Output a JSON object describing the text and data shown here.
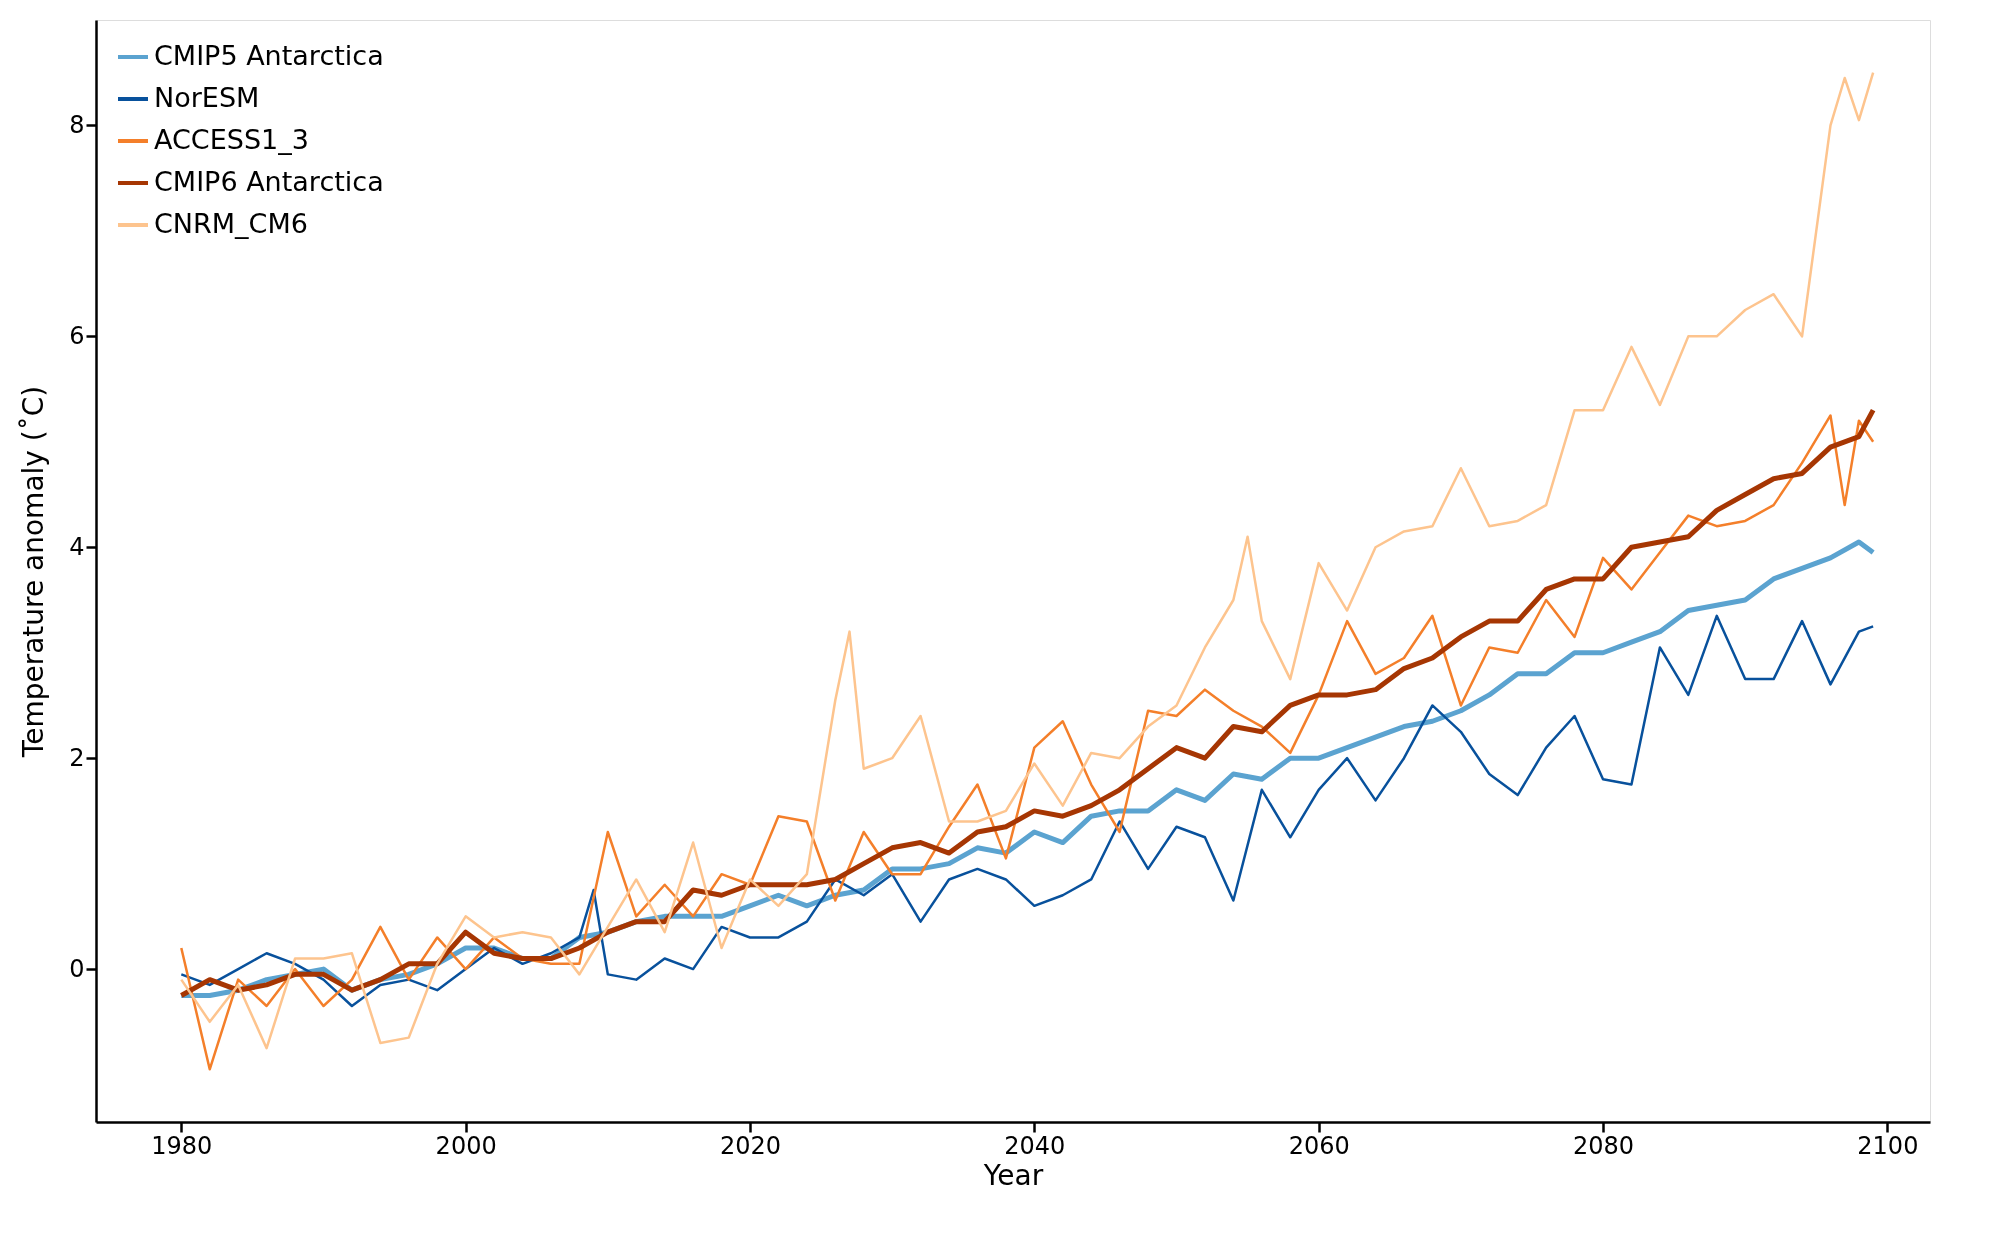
{
  "chart_data": {
    "type": "line",
    "xlabel": "Year",
    "ylabel": "Temperature anomaly (˚C)",
    "xlim": [
      1974,
      2103
    ],
    "ylim": [
      -1.45,
      9.0
    ],
    "xticks": [
      1980,
      2000,
      2020,
      2040,
      2060,
      2080,
      2100
    ],
    "yticks": [
      0,
      2,
      4,
      6,
      8
    ],
    "grid": false,
    "legend": "top left",
    "marker": "none",
    "line_style": "solid",
    "series": [
      {
        "name": "CMIP5 Antarctica",
        "color": "#5ba3d0",
        "x": [
          1980,
          1982,
          1984,
          1986,
          1988,
          1990,
          1992,
          1994,
          1996,
          1998,
          2000,
          2002,
          2004,
          2006,
          2008,
          2010,
          2012,
          2014,
          2016,
          2018,
          2020,
          2022,
          2024,
          2026,
          2028,
          2030,
          2032,
          2034,
          2036,
          2038,
          2040,
          2042,
          2044,
          2046,
          2048,
          2050,
          2052,
          2054,
          2056,
          2058,
          2060,
          2062,
          2064,
          2066,
          2068,
          2070,
          2072,
          2074,
          2076,
          2078,
          2080,
          2082,
          2084,
          2086,
          2088,
          2090,
          2092,
          2094,
          2096,
          2098,
          2099
        ],
        "values": [
          -0.25,
          -0.25,
          -0.2,
          -0.1,
          -0.05,
          0.0,
          -0.2,
          -0.1,
          -0.05,
          0.05,
          0.2,
          0.2,
          0.1,
          0.1,
          0.3,
          0.35,
          0.45,
          0.5,
          0.5,
          0.5,
          0.6,
          0.7,
          0.6,
          0.7,
          0.75,
          0.95,
          0.95,
          1.0,
          1.15,
          1.1,
          1.3,
          1.2,
          1.45,
          1.5,
          1.5,
          1.7,
          1.6,
          1.85,
          1.8,
          2.0,
          2.0,
          2.1,
          2.2,
          2.3,
          2.35,
          2.45,
          2.6,
          2.8,
          2.8,
          3.0,
          3.0,
          3.1,
          3.2,
          3.4,
          3.45,
          3.5,
          3.7,
          3.8,
          3.9,
          4.05,
          3.95
        ]
      },
      {
        "name": "NorESM",
        "color": "#08519c",
        "x": [
          1980,
          1982,
          1984,
          1986,
          1988,
          1990,
          1992,
          1994,
          1996,
          1998,
          2000,
          2002,
          2004,
          2006,
          2008,
          2009,
          2010,
          2012,
          2014,
          2016,
          2018,
          2020,
          2022,
          2024,
          2026,
          2028,
          2030,
          2032,
          2034,
          2036,
          2038,
          2040,
          2042,
          2044,
          2046,
          2048,
          2050,
          2052,
          2054,
          2056,
          2058,
          2060,
          2062,
          2064,
          2066,
          2068,
          2070,
          2072,
          2074,
          2076,
          2078,
          2080,
          2082,
          2084,
          2086,
          2088,
          2090,
          2092,
          2094,
          2096,
          2098,
          2099
        ],
        "values": [
          -0.05,
          -0.15,
          0.0,
          0.15,
          0.05,
          -0.1,
          -0.35,
          -0.15,
          -0.1,
          -0.2,
          0.0,
          0.2,
          0.05,
          0.15,
          0.3,
          0.75,
          -0.05,
          -0.1,
          0.1,
          0.0,
          0.4,
          0.3,
          0.3,
          0.45,
          0.85,
          0.7,
          0.9,
          0.45,
          0.85,
          0.95,
          0.85,
          0.6,
          0.7,
          0.85,
          1.4,
          0.95,
          1.35,
          1.25,
          0.65,
          1.7,
          1.25,
          1.7,
          2.0,
          1.6,
          2.0,
          2.5,
          2.25,
          1.85,
          1.65,
          2.1,
          2.4,
          1.8,
          1.75,
          3.05,
          2.6,
          3.35,
          2.75,
          2.75,
          3.3,
          2.7,
          3.2,
          3.25
        ]
      },
      {
        "name": "ACCESS1_3",
        "color": "#f47f2a",
        "x": [
          1980,
          1982,
          1984,
          1986,
          1988,
          1990,
          1992,
          1994,
          1996,
          1998,
          2000,
          2002,
          2004,
          2006,
          2008,
          2010,
          2012,
          2014,
          2016,
          2018,
          2020,
          2022,
          2024,
          2026,
          2028,
          2030,
          2032,
          2034,
          2036,
          2038,
          2040,
          2042,
          2044,
          2046,
          2048,
          2050,
          2052,
          2054,
          2056,
          2058,
          2060,
          2062,
          2064,
          2066,
          2068,
          2070,
          2072,
          2074,
          2076,
          2078,
          2080,
          2082,
          2084,
          2086,
          2088,
          2090,
          2092,
          2094,
          2096,
          2097,
          2098,
          2099
        ],
        "values": [
          0.2,
          -0.95,
          -0.1,
          -0.35,
          0.0,
          -0.35,
          -0.1,
          0.4,
          -0.1,
          0.3,
          0.0,
          0.3,
          0.1,
          0.05,
          0.05,
          1.3,
          0.5,
          0.8,
          0.5,
          0.9,
          0.8,
          1.45,
          1.4,
          0.65,
          1.3,
          0.9,
          0.9,
          1.35,
          1.75,
          1.05,
          2.1,
          2.35,
          1.75,
          1.3,
          2.45,
          2.4,
          2.65,
          2.45,
          2.3,
          2.05,
          2.6,
          3.3,
          2.8,
          2.95,
          3.35,
          2.5,
          3.05,
          3.0,
          3.5,
          3.15,
          3.9,
          3.6,
          3.95,
          4.3,
          4.2,
          4.25,
          4.4,
          4.8,
          5.25,
          4.4,
          5.2,
          5.0
        ]
      },
      {
        "name": "CMIP6 Antarctica",
        "color": "#a63603",
        "x": [
          1980,
          1982,
          1984,
          1986,
          1988,
          1990,
          1992,
          1994,
          1996,
          1998,
          2000,
          2002,
          2004,
          2006,
          2008,
          2010,
          2012,
          2014,
          2016,
          2018,
          2020,
          2022,
          2024,
          2026,
          2028,
          2030,
          2032,
          2034,
          2036,
          2038,
          2040,
          2042,
          2044,
          2046,
          2048,
          2050,
          2052,
          2054,
          2056,
          2058,
          2060,
          2062,
          2064,
          2066,
          2068,
          2070,
          2072,
          2074,
          2076,
          2078,
          2080,
          2082,
          2084,
          2086,
          2088,
          2090,
          2092,
          2094,
          2096,
          2098,
          2099
        ],
        "values": [
          -0.25,
          -0.1,
          -0.2,
          -0.15,
          -0.05,
          -0.05,
          -0.2,
          -0.1,
          0.05,
          0.05,
          0.35,
          0.15,
          0.1,
          0.1,
          0.2,
          0.35,
          0.45,
          0.45,
          0.75,
          0.7,
          0.8,
          0.8,
          0.8,
          0.85,
          1.0,
          1.15,
          1.2,
          1.1,
          1.3,
          1.35,
          1.5,
          1.45,
          1.55,
          1.7,
          1.9,
          2.1,
          2.0,
          2.3,
          2.25,
          2.5,
          2.6,
          2.6,
          2.65,
          2.85,
          2.95,
          3.15,
          3.3,
          3.3,
          3.6,
          3.7,
          3.7,
          4.0,
          4.05,
          4.1,
          4.35,
          4.5,
          4.65,
          4.7,
          4.95,
          5.05,
          5.3
        ]
      },
      {
        "name": "CNRM_CM6",
        "color": "#fdc48e",
        "x": [
          1980,
          1982,
          1984,
          1986,
          1988,
          1990,
          1992,
          1994,
          1996,
          1998,
          2000,
          2002,
          2004,
          2006,
          2008,
          2010,
          2012,
          2014,
          2016,
          2018,
          2020,
          2022,
          2024,
          2026,
          2027,
          2028,
          2030,
          2032,
          2034,
          2036,
          2038,
          2040,
          2042,
          2044,
          2046,
          2048,
          2050,
          2052,
          2054,
          2055,
          2056,
          2058,
          2060,
          2062,
          2064,
          2066,
          2068,
          2070,
          2072,
          2074,
          2076,
          2078,
          2080,
          2082,
          2084,
          2086,
          2088,
          2090,
          2092,
          2094,
          2096,
          2097,
          2098,
          2099
        ],
        "values": [
          -0.1,
          -0.5,
          -0.15,
          -0.75,
          0.1,
          0.1,
          0.15,
          -0.7,
          -0.65,
          0.05,
          0.5,
          0.3,
          0.35,
          0.3,
          -0.05,
          0.4,
          0.85,
          0.35,
          1.2,
          0.2,
          0.85,
          0.6,
          0.9,
          2.55,
          3.2,
          1.9,
          2.0,
          2.4,
          1.4,
          1.4,
          1.5,
          1.95,
          1.55,
          2.05,
          2.0,
          2.3,
          2.5,
          3.05,
          3.5,
          4.1,
          3.3,
          2.75,
          3.85,
          3.4,
          4.0,
          4.15,
          4.2,
          4.75,
          4.2,
          4.25,
          4.4,
          5.3,
          5.3,
          5.9,
          5.35,
          6.0,
          6.0,
          6.25,
          6.4,
          6.0,
          8.0,
          8.45,
          8.05,
          8.5
        ]
      }
    ]
  }
}
